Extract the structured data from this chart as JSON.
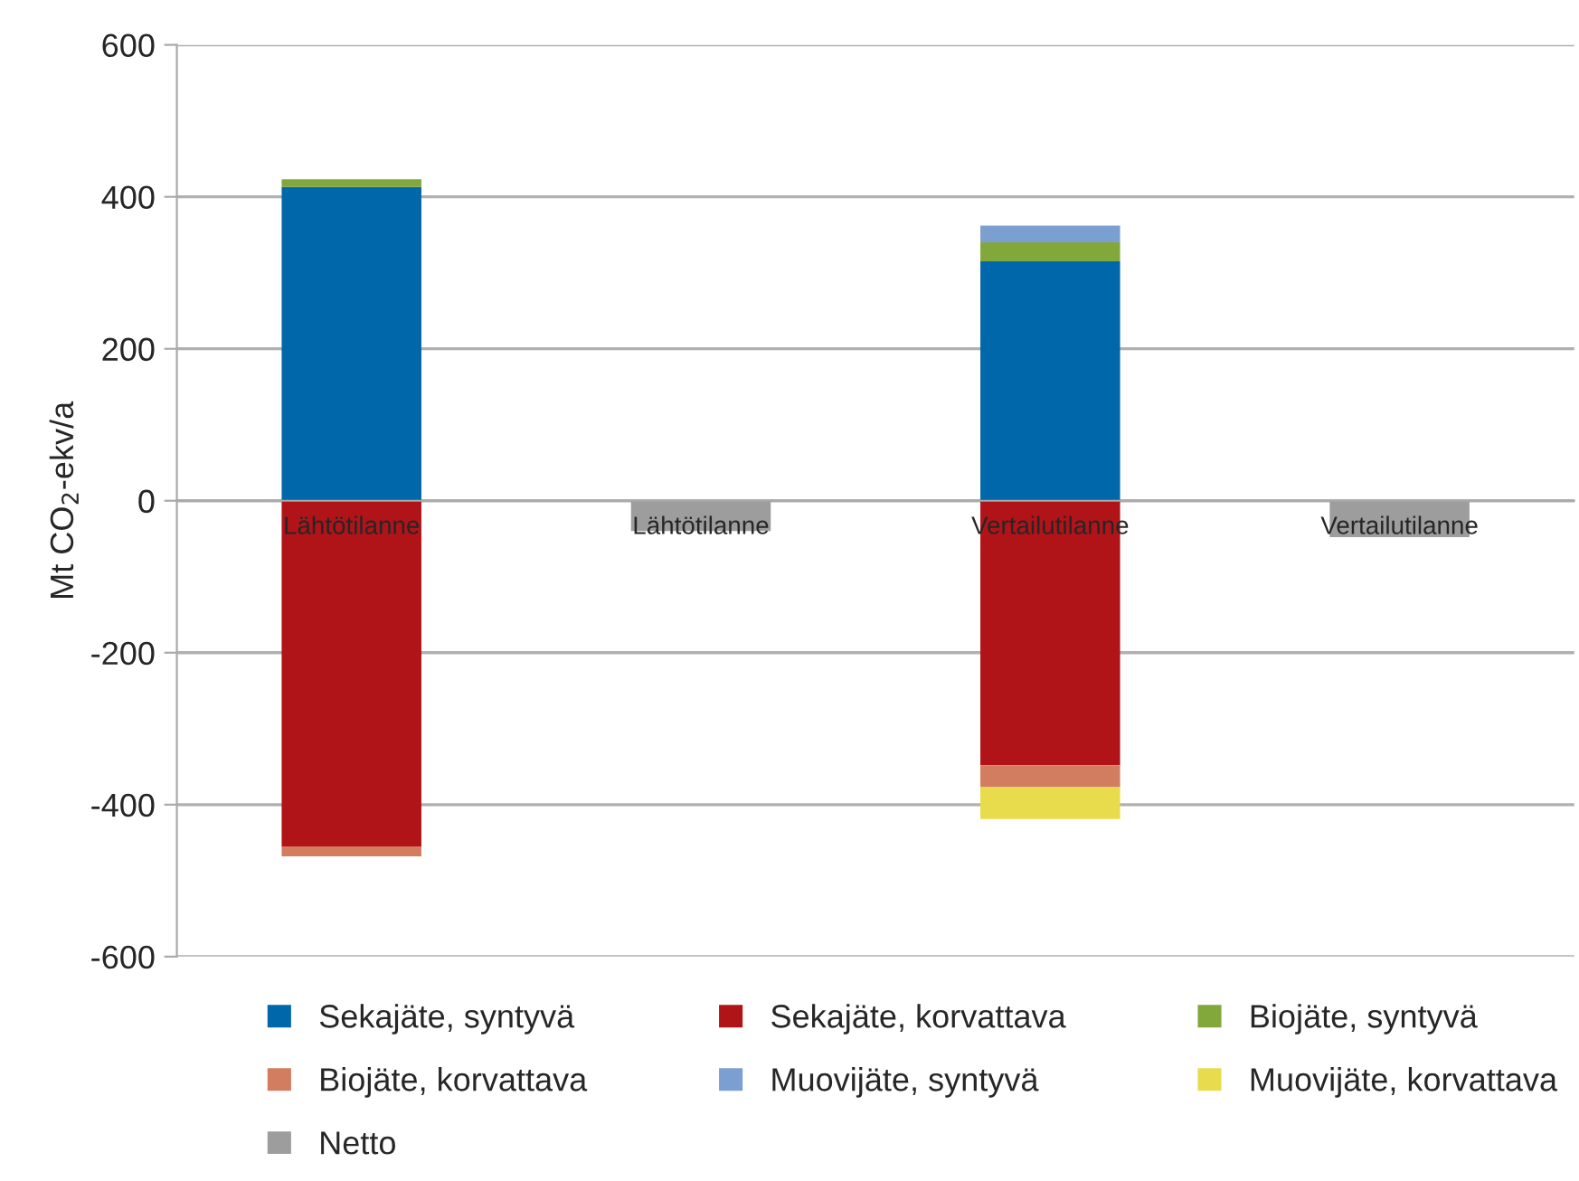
{
  "chart_data": {
    "type": "bar",
    "stacked": true,
    "categories": [
      "Lähtötilanne",
      "Lähtötilanne",
      "Vertailutilanne",
      "Vertailutilanne"
    ],
    "ylabel": "Mt CO$_{2}$-ekv/a",
    "ylim": [
      -600,
      600
    ],
    "yticks": [
      -600,
      -400,
      -200,
      0,
      200,
      400,
      600
    ],
    "grid": "y",
    "legend": "bottom",
    "series": [
      {
        "name": "Sekajäte, syntyvä",
        "color": "#0068aa",
        "values": [
          413,
          null,
          315,
          null
        ]
      },
      {
        "name": "Sekajäte, korvattava",
        "color": "#b01419",
        "values": [
          -455,
          null,
          -348,
          null
        ]
      },
      {
        "name": "Biojäte, syntyvä",
        "color": "#82a83c",
        "values": [
          10,
          null,
          25,
          null
        ]
      },
      {
        "name": "Biojäte, korvattava",
        "color": "#d27d5f",
        "values": [
          -13,
          null,
          -29,
          null
        ]
      },
      {
        "name": "Muovijäte, syntyvä",
        "color": "#7b9fd0",
        "values": [
          null,
          null,
          22,
          null
        ]
      },
      {
        "name": "Muovijäte, korvattava",
        "color": "#e8dc4c",
        "values": [
          null,
          null,
          -42,
          null
        ]
      },
      {
        "name": "Netto",
        "color": "#9d9d9d",
        "values": [
          null,
          -40,
          null,
          -48
        ]
      }
    ]
  }
}
